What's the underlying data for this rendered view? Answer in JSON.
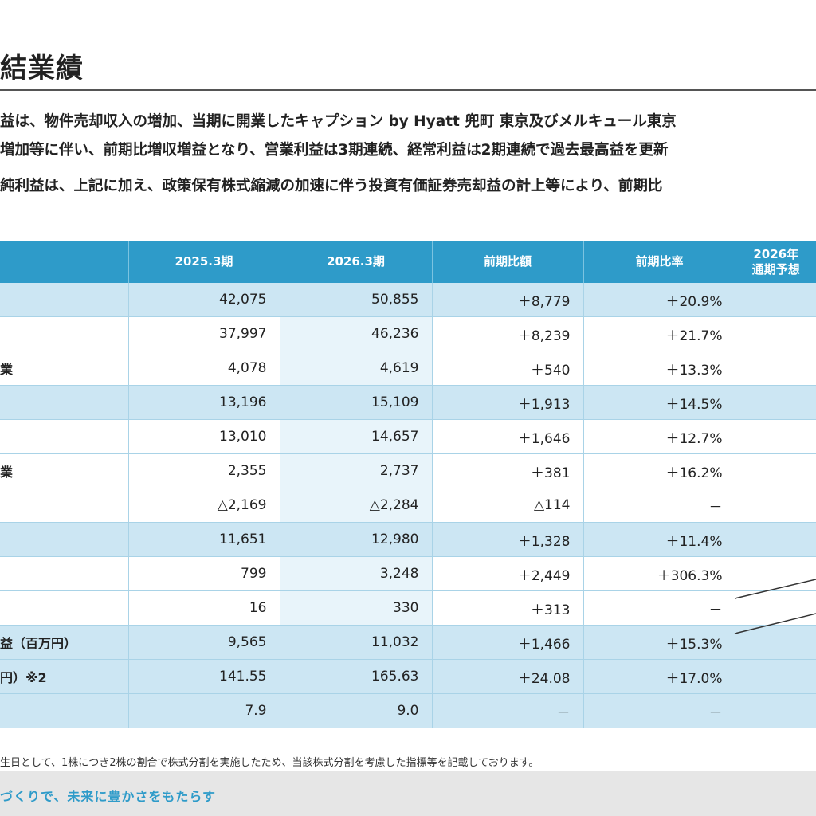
{
  "title": "結業績",
  "bullets": [
    "益は、物件売却収入の増加、当期に開業したキャプション by Hyatt 兜町 東京及びメルキュール東京",
    "増加等に伴い、前期比増収増益となり、営業利益は3期連続、経常利益は2期連続で過去最高益を更新",
    "純利益は、上記に加え、政策保有株式縮減の加速に伴う投資有価証券売却益の計上等により、前期比"
  ],
  "table": {
    "headers": [
      "",
      "2025.3期",
      "2026.3期",
      "前期比額",
      "前期比率",
      "2026年\n通期予想"
    ],
    "header_last_lines": [
      "2026年",
      "通期予想"
    ],
    "rows": [
      {
        "label": "",
        "v2025": "42,075",
        "v2026": "50,855",
        "diff": "＋8,779",
        "rate": "＋20.9%",
        "hl": true
      },
      {
        "label": "",
        "v2025": "37,997",
        "v2026": "46,236",
        "diff": "＋8,239",
        "rate": "＋21.7%",
        "hl": false
      },
      {
        "label": "業",
        "v2025": "4,078",
        "v2026": "4,619",
        "diff": "＋540",
        "rate": "＋13.3%",
        "hl": false
      },
      {
        "label": "",
        "v2025": "13,196",
        "v2026": "15,109",
        "diff": "＋1,913",
        "rate": "＋14.5%",
        "hl": true
      },
      {
        "label": "",
        "v2025": "13,010",
        "v2026": "14,657",
        "diff": "＋1,646",
        "rate": "＋12.7%",
        "hl": false
      },
      {
        "label": "業",
        "v2025": "2,355",
        "v2026": "2,737",
        "diff": "＋381",
        "rate": "＋16.2%",
        "hl": false
      },
      {
        "label": "",
        "v2025": "△2,169",
        "v2026": "△2,284",
        "diff": "△114",
        "rate": "－",
        "hl": false
      },
      {
        "label": "",
        "v2025": "11,651",
        "v2026": "12,980",
        "diff": "＋1,328",
        "rate": "＋11.4%",
        "hl": true
      },
      {
        "label": "",
        "v2025": "799",
        "v2026": "3,248",
        "diff": "＋2,449",
        "rate": "＋306.3%",
        "hl": false
      },
      {
        "label": "",
        "v2025": "16",
        "v2026": "330",
        "diff": "＋313",
        "rate": "－",
        "hl": false
      },
      {
        "label": "益（百万円）",
        "v2025": "9,565",
        "v2026": "11,032",
        "diff": "＋1,466",
        "rate": "＋15.3%",
        "hl": true
      },
      {
        "label": "円）※2",
        "v2025": "141.55",
        "v2026": "165.63",
        "diff": "＋24.08",
        "rate": "＋17.0%",
        "hl": true
      },
      {
        "label": "",
        "v2025": "7.9",
        "v2026": "9.0",
        "diff": "－",
        "rate": "－",
        "hl": true
      }
    ]
  },
  "footnote": "生日として、1株につき2株の割合で株式分割を実施したため、当該株式分割を考慮した指標等を記載しております。",
  "footer_slogan": "づくりで、未来に豊かさをもたらす",
  "colors": {
    "header_blue": "#2e9bc9",
    "highlight_row": "#cce6f3",
    "footer_bg": "#e6e6e6"
  }
}
